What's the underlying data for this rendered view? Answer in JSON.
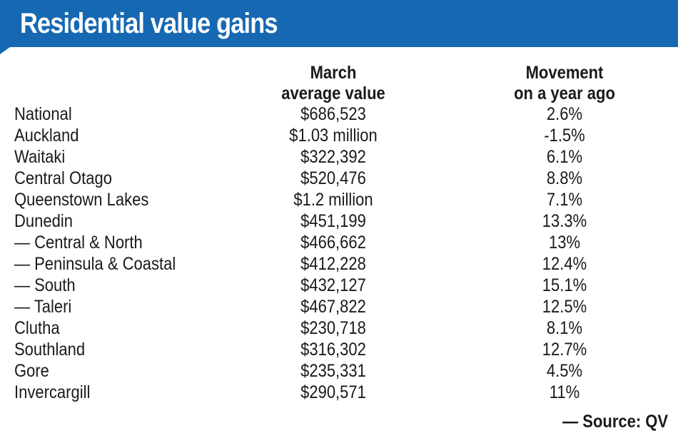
{
  "header": {
    "title": "Residential value gains",
    "color": "#1668b2"
  },
  "columns": {
    "value": {
      "line1": "March",
      "line2": "average value"
    },
    "movement": {
      "line1": "Movement",
      "line2": "on a year ago"
    }
  },
  "rows": [
    {
      "name": "National",
      "value": "$686,523",
      "movement": "2.6%"
    },
    {
      "name": "Auckland",
      "value": "$1.03 million",
      "movement": "-1.5%"
    },
    {
      "name": "Waitaki",
      "value": "$322,392",
      "movement": "6.1%"
    },
    {
      "name": "Central Otago",
      "value": "$520,476",
      "movement": "8.8%"
    },
    {
      "name": "Queenstown Lakes",
      "value": "$1.2 million",
      "movement": "7.1%"
    },
    {
      "name": "Dunedin",
      "value": "$451,199",
      "movement": "13.3%"
    },
    {
      "name": "— Central & North",
      "value": "$466,662",
      "movement": "13%"
    },
    {
      "name": "— Peninsula & Coastal",
      "value": "$412,228",
      "movement": "12.4%"
    },
    {
      "name": "— South",
      "value": "$432,127",
      "movement": "15.1%"
    },
    {
      "name": "— Taleri",
      "value": "$467,822",
      "movement": "12.5%"
    },
    {
      "name": "Clutha",
      "value": "$230,718",
      "movement": "8.1%"
    },
    {
      "name": "Southland",
      "value": "$316,302",
      "movement": "12.7%"
    },
    {
      "name": "Gore",
      "value": "$235,331",
      "movement": "4.5%"
    },
    {
      "name": "Invercargill",
      "value": "$290,571",
      "movement": "11%"
    }
  ],
  "source": "— Source: QV"
}
